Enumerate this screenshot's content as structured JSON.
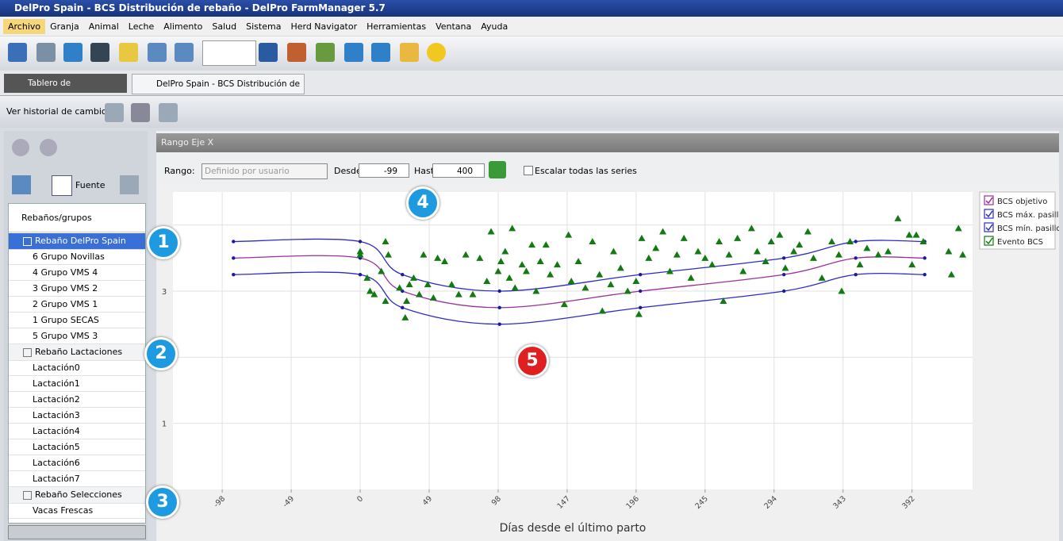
{
  "window": {
    "title": "DelPro Spain - BCS Distribución de rebaño - DelPro FarmManager 5.7"
  },
  "menu": [
    "Archivo",
    "Granja",
    "Animal",
    "Leche",
    "Alimento",
    "Salud",
    "Sistema",
    "Herd Navigator",
    "Herramientas",
    "Ventana",
    "Ayuda"
  ],
  "tabs": [
    "Tablero de Monitorización",
    "DelPro Spain - BCS Distribución de rebaño"
  ],
  "toolbar": {
    "history": "Ver historial de cambios"
  },
  "side": {
    "font": "Fuente",
    "header": "Rebaños/grupos",
    "groups": [
      {
        "label": "Rebaño  DelPro Spain",
        "items": [
          "6 Grupo Novillas",
          "4 Grupo VMS 4",
          "3 Grupo VMS 2",
          "2 Grupo VMS 1",
          "1 Grupo SECAS",
          "5 Grupo VMS 3"
        ]
      },
      {
        "label": "Rebaño  Lactaciones",
        "items": [
          "Lactación0",
          "Lactación1",
          "Lactación2",
          "Lactación3",
          "Lactación4",
          "Lactación5",
          "Lactación6",
          "Lactación7"
        ]
      },
      {
        "label": "Rebaño  Selecciones",
        "items": [
          "Vacas Frescas"
        ]
      }
    ]
  },
  "range": {
    "title": "Rango Eje X",
    "range_label": "Rango:",
    "range_value": "Definido por usuario",
    "from_label": "Desde:",
    "from_value": -99,
    "to_label": "Hast",
    "to_value": 400,
    "scale_all": "Escalar todas las series"
  },
  "callouts": [
    1,
    2,
    3,
    4,
    5
  ],
  "chart_data": {
    "type": "line",
    "x_label": "Días desde el último parto",
    "xlim": [
      -133,
      435
    ],
    "xticks": [
      -98,
      -49,
      0,
      49,
      98,
      147,
      196,
      245,
      294,
      343,
      392
    ],
    "ylim": [
      0,
      4.5
    ],
    "yticks": [
      1,
      3
    ],
    "ygrid": [
      1,
      2,
      3,
      4
    ],
    "grid": true,
    "series": [
      {
        "name": "BCS objetivo",
        "color": "#9b2f9b",
        "x": [
          -90,
          0,
          30,
          99,
          199,
          301,
          352,
          401
        ],
        "values": [
          3.5,
          3.5,
          3.0,
          2.75,
          3.0,
          3.25,
          3.5,
          3.5
        ]
      },
      {
        "name": "BCS máx. pasillo",
        "color": "#2b2bc8",
        "x": [
          -90,
          0,
          30,
          99,
          199,
          301,
          352,
          401
        ],
        "values": [
          3.75,
          3.75,
          3.25,
          3.0,
          3.25,
          3.5,
          3.75,
          3.75
        ]
      },
      {
        "name": "BCS mín. pasillo",
        "color": "#2b2bc8",
        "x": [
          -90,
          0,
          30,
          99,
          199,
          301,
          352,
          401
        ],
        "values": [
          3.25,
          3.25,
          2.75,
          2.5,
          2.75,
          3.0,
          3.25,
          3.25
        ]
      },
      {
        "name": "Evento BCS",
        "type": "scatter",
        "color": "#137a13",
        "x": [
          0,
          0,
          5,
          7,
          10,
          15,
          18,
          20,
          18,
          28,
          33,
          32,
          35,
          38,
          42,
          45,
          48,
          52,
          55,
          60,
          65,
          70,
          75,
          80,
          85,
          90,
          93,
          98,
          100,
          103,
          106,
          108,
          110,
          115,
          118,
          122,
          125,
          128,
          132,
          135,
          140,
          145,
          148,
          150,
          155,
          160,
          165,
          170,
          172,
          178,
          180,
          185,
          190,
          196,
          198,
          200,
          205,
          210,
          215,
          220,
          225,
          230,
          235,
          240,
          245,
          250,
          255,
          258,
          262,
          268,
          272,
          278,
          282,
          288,
          292,
          298,
          302,
          308,
          312,
          318,
          322,
          328,
          335,
          340,
          342,
          348,
          355,
          360,
          368,
          375,
          382,
          390,
          392,
          395,
          400,
          418,
          420,
          425,
          428
        ],
        "values": [
          3.6,
          3.55,
          3.2,
          3.0,
          2.95,
          3.3,
          2.85,
          3.55,
          3.75,
          3.05,
          2.85,
          2.6,
          3.1,
          3.2,
          2.95,
          3.55,
          3.1,
          2.9,
          3.5,
          3.45,
          3.1,
          2.95,
          3.55,
          2.95,
          3.5,
          3.15,
          3.9,
          3.3,
          3.45,
          3.6,
          3.2,
          3.95,
          3.05,
          3.4,
          3.3,
          3.7,
          3.0,
          3.45,
          3.7,
          3.25,
          3.4,
          2.8,
          3.85,
          3.15,
          3.45,
          3.05,
          3.75,
          3.25,
          2.7,
          3.1,
          3.6,
          3.35,
          3.0,
          3.15,
          2.65,
          3.8,
          3.5,
          3.65,
          3.9,
          3.3,
          3.55,
          3.8,
          3.2,
          3.6,
          3.5,
          3.4,
          3.75,
          2.85,
          3.55,
          3.8,
          3.3,
          3.95,
          3.6,
          3.45,
          3.75,
          3.85,
          3.35,
          3.6,
          3.7,
          3.9,
          3.5,
          3.2,
          3.75,
          3.55,
          3.0,
          3.75,
          3.4,
          3.65,
          3.55,
          3.6,
          4.1,
          3.85,
          3.4,
          3.85,
          3.75,
          3.6,
          3.25,
          3.95,
          3.55
        ]
      }
    ]
  }
}
